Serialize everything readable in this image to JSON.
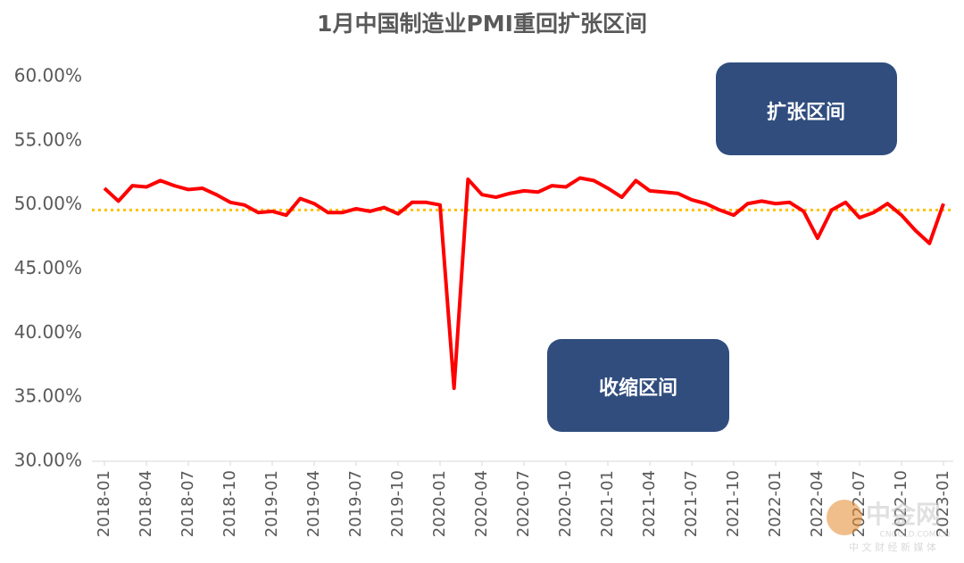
{
  "chart_data": {
    "type": "line",
    "title": "1月中国制造业PMI重回扩张区间",
    "categories": [
      "2018-01",
      null,
      null,
      "2018-04",
      null,
      null,
      "2018-07",
      null,
      null,
      "2018-10",
      null,
      null,
      "2019-01",
      null,
      null,
      "2019-04",
      null,
      null,
      "2019-07",
      null,
      null,
      "2019-10",
      null,
      null,
      "2020-01",
      null,
      null,
      "2020-04",
      null,
      null,
      "2020-07",
      null,
      null,
      "2020-10",
      null,
      null,
      "2021-01",
      null,
      null,
      "2021-04",
      null,
      null,
      "2021-07",
      null,
      null,
      "2021-10",
      null,
      null,
      "2022-01",
      null,
      null,
      "2022-04",
      null,
      null,
      "2022-07",
      null,
      null,
      "2022-10",
      null,
      null,
      "2023-01"
    ],
    "values": [
      51.3,
      50.3,
      51.5,
      51.4,
      51.9,
      51.5,
      51.2,
      51.3,
      50.8,
      50.2,
      50.0,
      49.4,
      49.5,
      49.2,
      50.5,
      50.1,
      49.4,
      49.4,
      49.7,
      49.5,
      49.8,
      49.3,
      50.2,
      50.2,
      50.0,
      35.7,
      52.0,
      50.8,
      50.6,
      50.9,
      51.1,
      51.0,
      51.5,
      51.4,
      52.1,
      51.9,
      51.3,
      50.6,
      51.9,
      51.1,
      51.0,
      50.9,
      50.4,
      50.1,
      49.6,
      49.2,
      50.1,
      50.3,
      50.1,
      50.2,
      49.5,
      47.4,
      49.6,
      50.2,
      49.0,
      49.4,
      50.1,
      49.2,
      48.0,
      47.0,
      50.1
    ],
    "color": "#ff0000",
    "ylim": [
      30,
      60
    ],
    "yticks": [
      {
        "value": 30,
        "label": "30.00%"
      },
      {
        "value": 35,
        "label": "35.00%"
      },
      {
        "value": 40,
        "label": "40.00%"
      },
      {
        "value": 45,
        "label": "45.00%"
      },
      {
        "value": 50,
        "label": "50.00%"
      },
      {
        "value": 55,
        "label": "55.00%"
      },
      {
        "value": 60,
        "label": "60.00%"
      }
    ],
    "reference_line": {
      "value": 49.6,
      "color": "#ffc000"
    },
    "annotations": [
      "扩张区间",
      "收缩区间"
    ],
    "watermark": [
      "中金网",
      "CNGOLD.COM.CN",
      "中 文 财 经 新 媒 体"
    ]
  }
}
